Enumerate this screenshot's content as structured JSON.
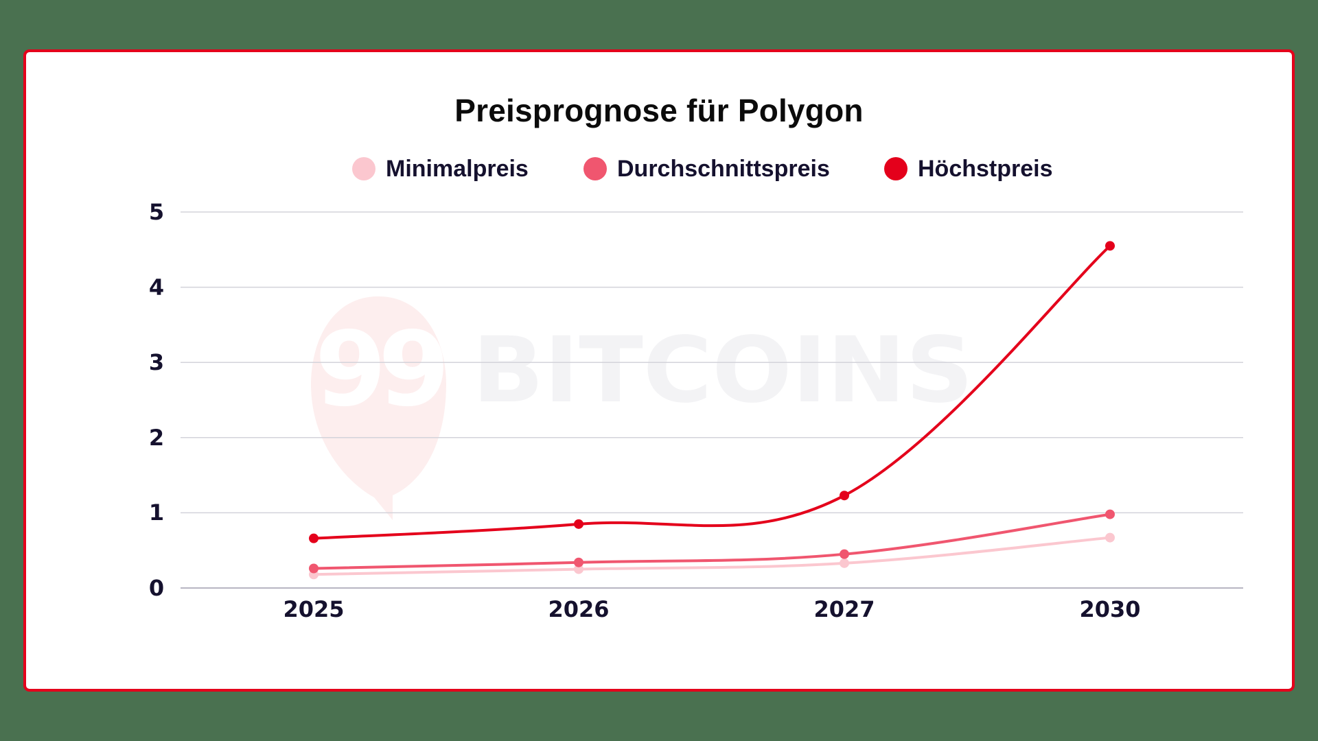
{
  "chart_data": {
    "type": "line",
    "title": "Preisprognose für Polygon",
    "xlabel": "",
    "ylabel": "",
    "categories": [
      "2025",
      "2026",
      "2027",
      "2030"
    ],
    "series": [
      {
        "name": "Minimalpreis",
        "color": "#fbc7cf",
        "values": [
          0.18,
          0.25,
          0.33,
          0.67
        ]
      },
      {
        "name": "Durchschnittspreis",
        "color": "#f0566f",
        "values": [
          0.26,
          0.34,
          0.45,
          0.98
        ]
      },
      {
        "name": "Höchstpreis",
        "color": "#e4001b",
        "values": [
          0.66,
          0.85,
          1.23,
          4.55
        ]
      }
    ],
    "ylim": [
      0,
      5
    ],
    "yticks": [
      "0",
      "1",
      "2",
      "3",
      "4",
      "5"
    ],
    "grid": true,
    "legend_position": "top",
    "smooth": true
  },
  "watermark": {
    "badge": "99",
    "text": "BITCOINS"
  },
  "colors": {
    "background": "#4a7150",
    "card_border": "#e4001b",
    "grid": "#d3d3da",
    "axis_text": "#15112e"
  }
}
